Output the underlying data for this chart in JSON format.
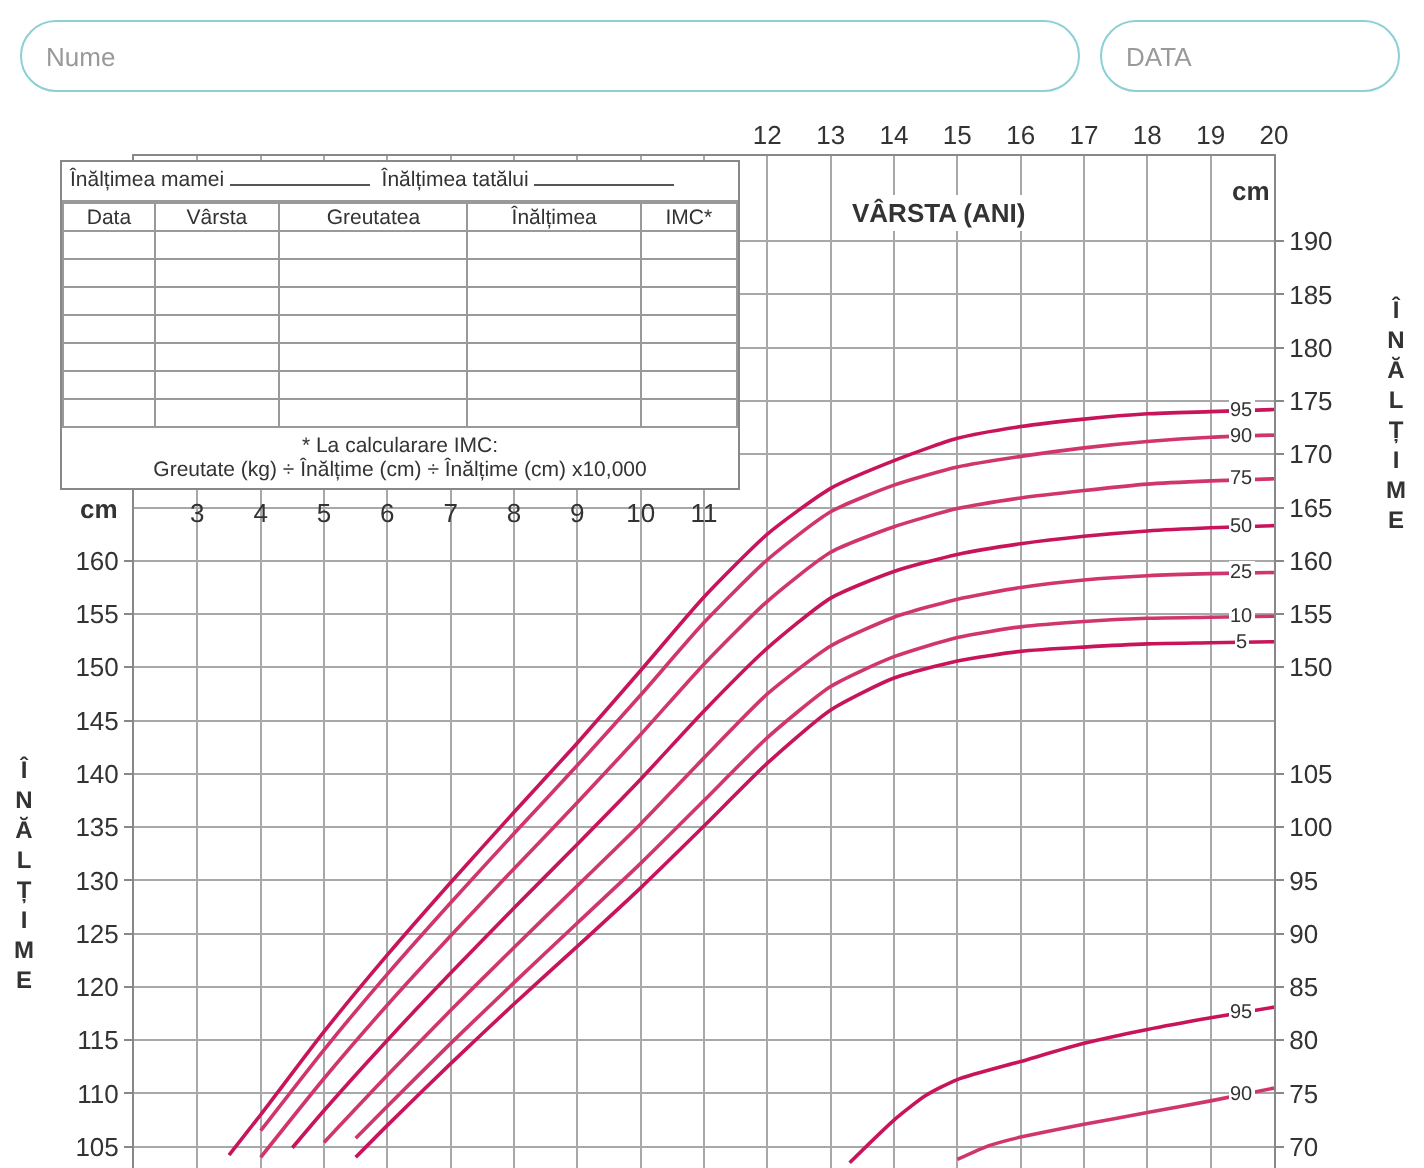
{
  "chart_data": {
    "type": "line",
    "xlabel": "VÂRSTA (ANI)",
    "ylabel": "ÎNĂLȚIME",
    "xlim": [
      2,
      20
    ],
    "xticks": [
      12,
      13,
      14,
      15,
      16,
      17,
      18,
      19,
      20
    ],
    "x2lim": [
      2,
      20
    ],
    "x2ticks": [
      3,
      4,
      5,
      6,
      7,
      8,
      9,
      10,
      11
    ],
    "ylim": [
      103,
      198
    ],
    "yticks": [
      105,
      110,
      115,
      120,
      125,
      130,
      135,
      140,
      145,
      150,
      155,
      160
    ],
    "y2lim": [
      68,
      163
    ],
    "y2ticks": [
      70,
      75,
      80,
      85,
      90,
      95,
      100,
      105
    ],
    "y3lim": [
      103,
      198
    ],
    "y3ticks": [
      150,
      155,
      160,
      165,
      170,
      175,
      180,
      185,
      190
    ],
    "grid": true,
    "legend": false,
    "line_style": "solid",
    "series": [
      {
        "name": "95",
        "color": "#c8145a",
        "x": [
          3.5,
          4,
          5,
          6,
          7,
          8,
          9,
          10,
          11,
          12,
          13,
          14,
          15,
          16,
          17,
          18,
          19,
          20
        ],
        "values": [
          104.2,
          108.0,
          115.8,
          123.0,
          129.8,
          136.4,
          142.9,
          149.7,
          156.6,
          162.5,
          166.8,
          169.4,
          171.5,
          172.6,
          173.3,
          173.8,
          174.0,
          174.2
        ]
      },
      {
        "name": "90",
        "color": "#d0366d",
        "x": [
          4,
          5,
          6,
          7,
          8,
          9,
          10,
          11,
          12,
          13,
          14,
          15,
          16,
          17,
          18,
          19,
          20
        ],
        "values": [
          106.5,
          114.1,
          121.2,
          127.9,
          134.4,
          140.8,
          147.4,
          154.2,
          160.1,
          164.6,
          167.1,
          168.8,
          169.8,
          170.6,
          171.2,
          171.6,
          171.8
        ]
      },
      {
        "name": "75",
        "color": "#d0366d",
        "x": [
          4,
          5,
          6,
          7,
          8,
          9,
          10,
          11,
          12,
          13,
          14,
          15,
          16,
          17,
          18,
          19,
          20
        ],
        "values": [
          104.0,
          111.4,
          118.3,
          124.8,
          131.1,
          137.3,
          143.7,
          150.3,
          156.2,
          160.8,
          163.2,
          164.9,
          165.9,
          166.6,
          167.2,
          167.5,
          167.7
        ]
      },
      {
        "name": "50",
        "color": "#c8145a",
        "x": [
          4.5,
          5,
          6,
          7,
          8,
          9,
          10,
          11,
          12,
          13,
          14,
          15,
          16,
          17,
          18,
          19,
          20
        ],
        "values": [
          104.9,
          108.4,
          115.0,
          121.3,
          127.4,
          133.4,
          139.5,
          145.9,
          151.8,
          156.5,
          159.0,
          160.6,
          161.6,
          162.3,
          162.8,
          163.1,
          163.3
        ]
      },
      {
        "name": "25",
        "color": "#d0366d",
        "x": [
          5,
          6,
          7,
          8,
          9,
          10,
          11,
          12,
          13,
          14,
          15,
          16,
          17,
          18,
          19,
          20
        ],
        "values": [
          105.4,
          111.7,
          117.8,
          123.7,
          129.5,
          135.3,
          141.5,
          147.5,
          152.0,
          154.7,
          156.4,
          157.5,
          158.2,
          158.6,
          158.8,
          158.9
        ]
      },
      {
        "name": "10",
        "color": "#d0366d",
        "x": [
          5.5,
          6,
          7,
          8,
          9,
          10,
          11,
          12,
          13,
          14,
          15,
          16,
          17,
          18,
          19,
          20
        ],
        "values": [
          105.8,
          108.8,
          114.7,
          120.4,
          126.0,
          131.6,
          137.5,
          143.4,
          148.2,
          151.0,
          152.8,
          153.8,
          154.3,
          154.6,
          154.7,
          154.8
        ]
      },
      {
        "name": "5",
        "color": "#c8145a",
        "x": [
          5.5,
          6,
          7,
          8,
          9,
          10,
          11,
          12,
          13,
          14,
          15,
          16,
          17,
          18,
          19,
          20
        ],
        "values": [
          104.0,
          107.0,
          112.8,
          118.4,
          123.8,
          129.3,
          135.1,
          141.0,
          146.0,
          149.0,
          150.6,
          151.5,
          151.9,
          152.2,
          152.3,
          152.4
        ]
      },
      {
        "name": "95",
        "color": "#c8145a",
        "axis": "y2",
        "x": [
          13.3,
          14,
          14.5,
          15,
          16,
          17,
          18,
          19,
          20
        ],
        "values": [
          68.5,
          72.5,
          74.8,
          76.3,
          78.0,
          79.7,
          81.0,
          82.1,
          83.1
        ]
      },
      {
        "name": "90",
        "color": "#d0366d",
        "axis": "y2",
        "x": [
          15,
          15.5,
          16,
          17,
          18,
          19,
          20
        ],
        "values": [
          68.8,
          70.1,
          70.9,
          72.1,
          73.2,
          74.3,
          75.5
        ]
      }
    ],
    "annotations": [
      "Nume",
      "DATA",
      "Înălțimea mamei",
      "Înălțimea tatălui",
      "Data",
      "Vârsta",
      "Greutatea",
      "Înălțimea",
      "IMC*",
      "* La calcularare IMC:",
      "Greutate (kg) ÷ Înălțime (cm) ÷ Înălțime (cm) x10,000",
      "cm",
      "cm",
      "ÎNĂLȚIME"
    ]
  }
}
